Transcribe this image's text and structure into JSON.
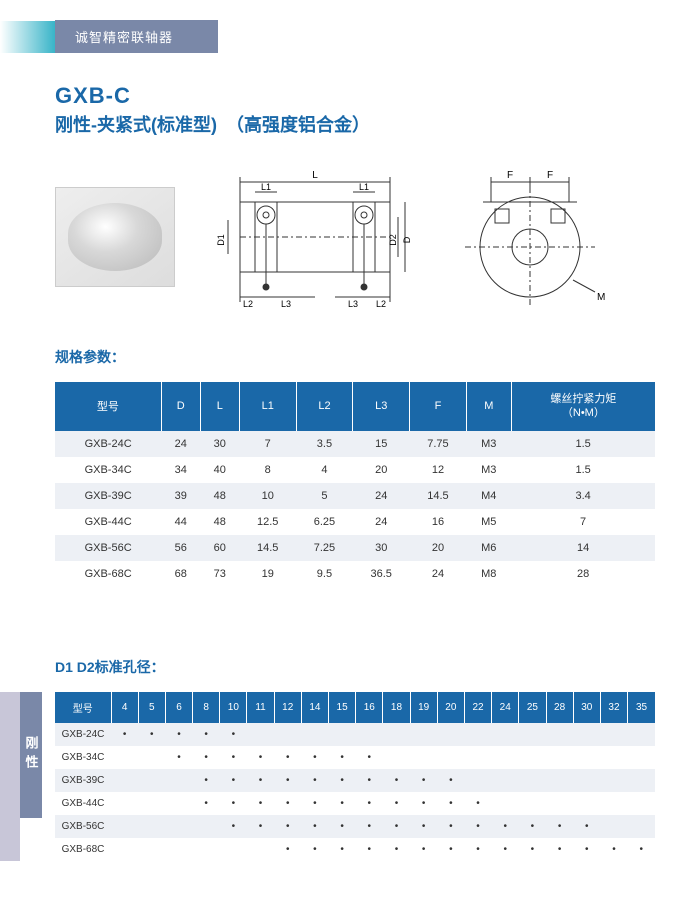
{
  "header": {
    "brand": "诚智精密联轴器"
  },
  "title": {
    "code": "GXB-C",
    "sub": "刚性-夹紧式(标准型)　（高强度铝合金）"
  },
  "diagrams": {
    "side": {
      "L": "L",
      "L1": "L1",
      "L2": "L2",
      "L3": "L3",
      "D1": "D1",
      "D2": "D2",
      "D": "D"
    },
    "front": {
      "F": "F",
      "M": "M"
    }
  },
  "spec": {
    "label": "规格参数：",
    "columns": [
      "型号",
      "D",
      "L",
      "L1",
      "L2",
      "L3",
      "F",
      "M",
      "螺丝拧紧力矩\n（N•M）"
    ],
    "rows": [
      [
        "GXB-24C",
        "24",
        "30",
        "7",
        "3.5",
        "15",
        "7.75",
        "M3",
        "1.5"
      ],
      [
        "GXB-34C",
        "34",
        "40",
        "8",
        "4",
        "20",
        "12",
        "M3",
        "1.5"
      ],
      [
        "GXB-39C",
        "39",
        "48",
        "10",
        "5",
        "24",
        "14.5",
        "M4",
        "3.4"
      ],
      [
        "GXB-44C",
        "44",
        "48",
        "12.5",
        "6.25",
        "24",
        "16",
        "M5",
        "7"
      ],
      [
        "GXB-56C",
        "56",
        "60",
        "14.5",
        "7.25",
        "30",
        "20",
        "M6",
        "14"
      ],
      [
        "GXB-68C",
        "68",
        "73",
        "19",
        "9.5",
        "36.5",
        "24",
        "M8",
        "28"
      ]
    ]
  },
  "bore": {
    "label": "D1 D2标准孔径：",
    "side_tab": "刚性",
    "model_hdr": "型号",
    "sizes": [
      "4",
      "5",
      "6",
      "8",
      "10",
      "11",
      "12",
      "14",
      "15",
      "16",
      "18",
      "19",
      "20",
      "22",
      "24",
      "25",
      "28",
      "30",
      "32",
      "35"
    ],
    "models": [
      "GXB-24C",
      "GXB-34C",
      "GXB-39C",
      "GXB-44C",
      "GXB-56C",
      "GXB-68C"
    ],
    "dots": {
      "GXB-24C": [
        "4",
        "5",
        "6",
        "8",
        "10"
      ],
      "GXB-34C": [
        "6",
        "8",
        "10",
        "11",
        "12",
        "14",
        "15",
        "16"
      ],
      "GXB-39C": [
        "8",
        "10",
        "11",
        "12",
        "14",
        "15",
        "16",
        "18",
        "19",
        "20"
      ],
      "GXB-44C": [
        "8",
        "10",
        "11",
        "12",
        "14",
        "15",
        "16",
        "18",
        "19",
        "20",
        "22"
      ],
      "GXB-56C": [
        "10",
        "11",
        "12",
        "14",
        "15",
        "16",
        "18",
        "19",
        "20",
        "22",
        "24",
        "25",
        "28",
        "30"
      ],
      "GXB-68C": [
        "12",
        "14",
        "15",
        "16",
        "18",
        "19",
        "20",
        "22",
        "24",
        "25",
        "28",
        "30",
        "32",
        "35"
      ]
    }
  },
  "colors": {
    "brand_blue": "#1a68a8",
    "header_gray": "#7a88a8",
    "teal": "#38b4c8"
  }
}
